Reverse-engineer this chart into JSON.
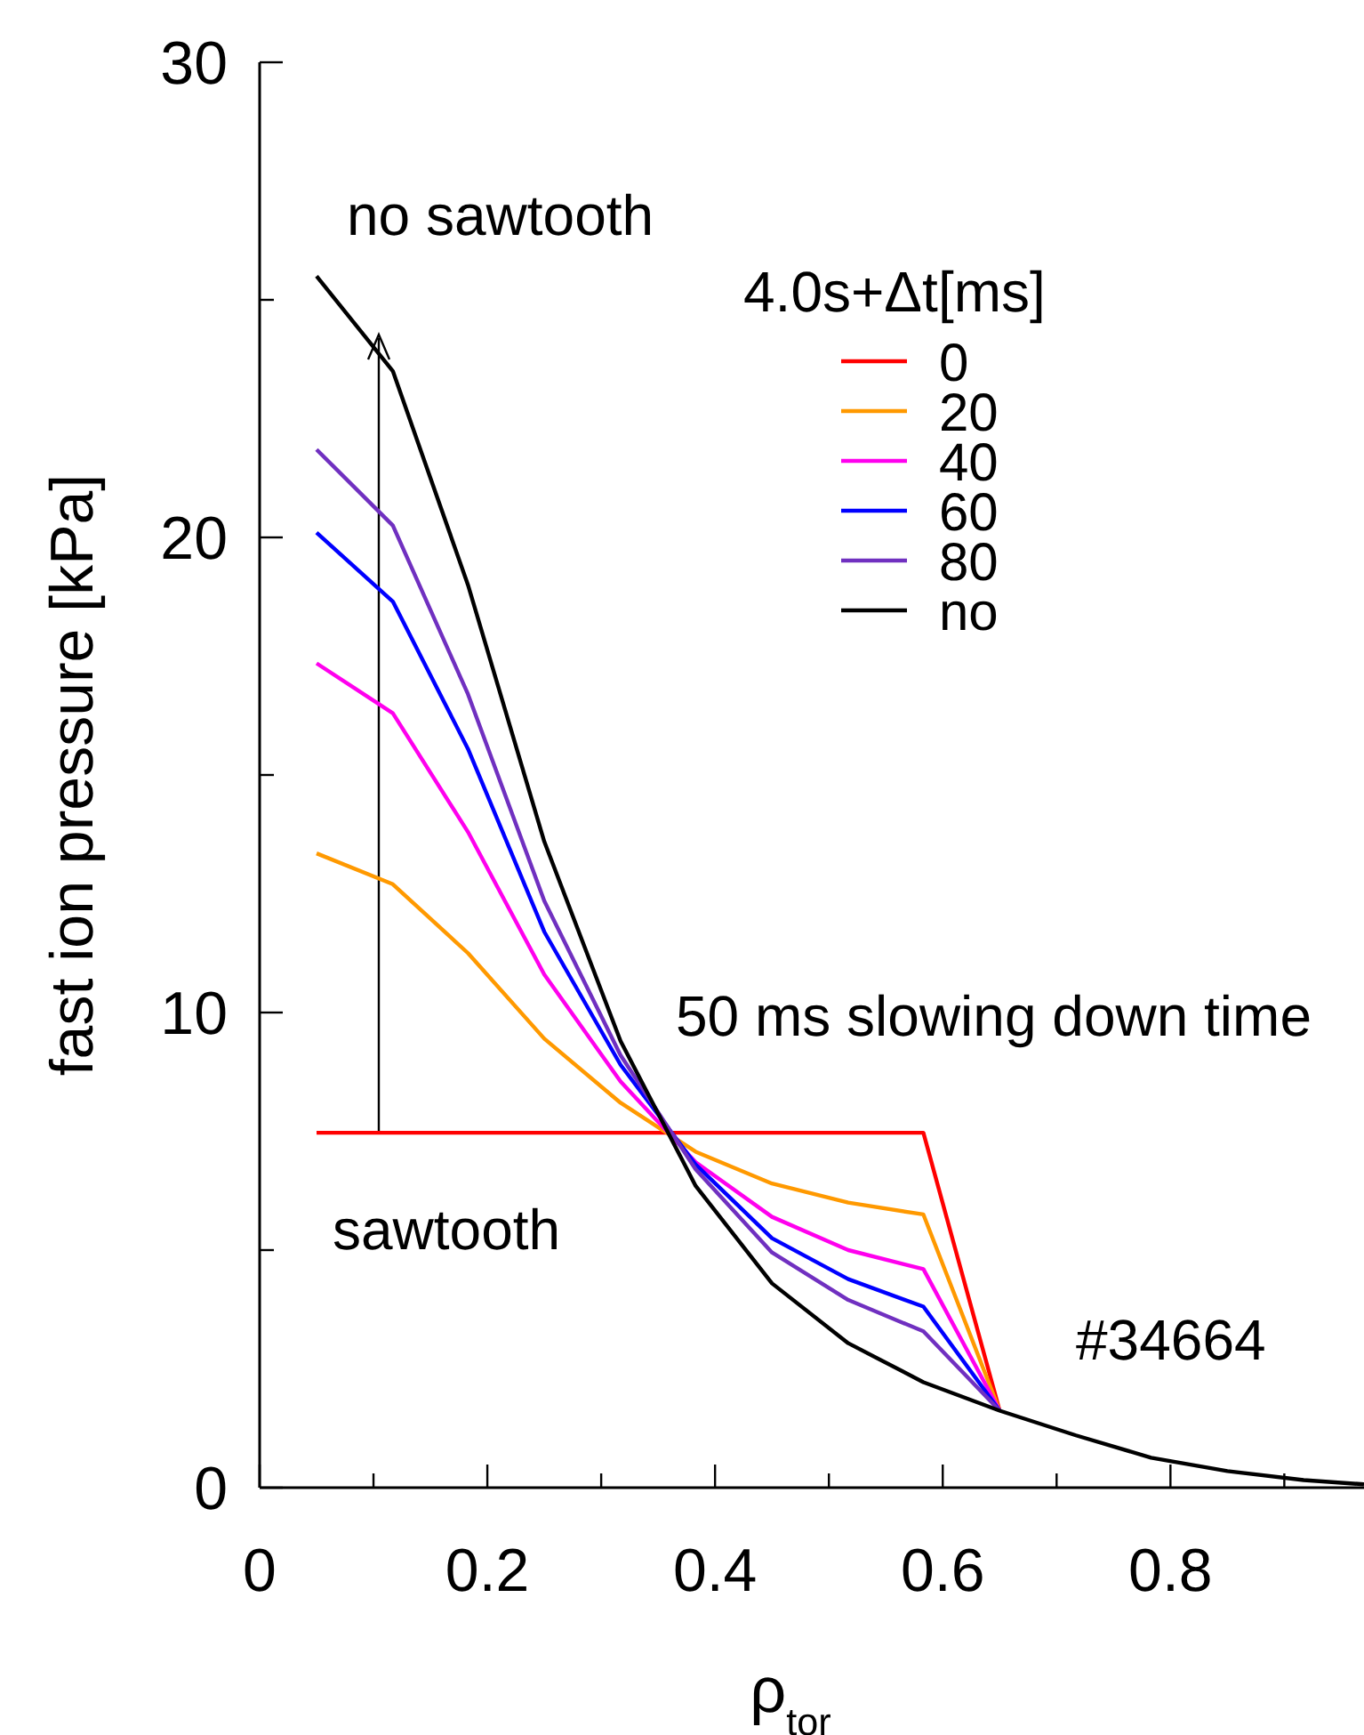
{
  "chart_data": {
    "type": "line",
    "xlabel": "ρ$_{tor}$",
    "ylabel": "fast ion pressure [kPa]",
    "legend_title": "4.0s+Δt[ms]",
    "x": [
      0.05,
      0.117,
      0.183,
      0.25,
      0.317,
      0.383,
      0.45,
      0.517,
      0.583,
      0.65,
      0.717,
      0.783,
      0.85,
      0.917,
      0.97
    ],
    "series": [
      {
        "name": "0",
        "color": "#ff0000",
        "values": [
          7.47,
          7.47,
          7.47,
          7.47,
          7.47,
          7.47,
          7.47,
          7.47,
          7.47,
          1.62,
          null,
          null,
          null,
          null,
          null
        ]
      },
      {
        "name": "20",
        "color": "#ff9900",
        "values": [
          13.35,
          12.7,
          11.25,
          9.45,
          8.1,
          7.07,
          6.4,
          6.0,
          5.75,
          1.62,
          null,
          null,
          null,
          null,
          null
        ]
      },
      {
        "name": "40",
        "color": "#ff00ee",
        "values": [
          17.35,
          16.3,
          13.8,
          10.8,
          8.55,
          6.85,
          5.7,
          5.0,
          4.6,
          1.62,
          null,
          null,
          null,
          null,
          null
        ]
      },
      {
        "name": "60",
        "color": "#0000ff",
        "values": [
          20.1,
          18.65,
          15.55,
          11.7,
          8.9,
          6.8,
          5.25,
          4.39,
          3.81,
          1.62,
          null,
          null,
          null,
          null,
          null
        ]
      },
      {
        "name": "80",
        "color": "#7030c0",
        "values": [
          21.85,
          20.25,
          16.7,
          12.35,
          9.1,
          6.7,
          4.95,
          3.95,
          3.29,
          1.62,
          null,
          null,
          null,
          null,
          null
        ]
      },
      {
        "name": "no",
        "color": "#000000",
        "values": [
          25.5,
          23.5,
          19.0,
          13.6,
          9.4,
          6.35,
          4.3,
          3.04,
          2.22,
          1.62,
          1.1,
          0.63,
          0.35,
          0.16,
          0.07
        ]
      }
    ],
    "xlim": [
      0,
      0.97
    ],
    "xticks": [
      0,
      {
        "value": 0.1,
        "label": null
      },
      0.2,
      {
        "value": 0.3,
        "label": null
      },
      0.4,
      {
        "value": 0.5,
        "label": null
      },
      0.6,
      {
        "value": 0.7,
        "label": null
      },
      0.8,
      {
        "value": 0.9,
        "label": null
      }
    ],
    "ylim": [
      0,
      30
    ],
    "yticks": [
      0,
      {
        "value": 5,
        "label": null
      },
      10,
      {
        "value": 15,
        "label": null
      },
      20,
      {
        "value": 25,
        "label": null
      },
      30
    ],
    "annotations": [
      "no sawtooth",
      "sawtooth",
      "50 ms slowing down time",
      "#34664"
    ],
    "legend": "top right",
    "grid": false,
    "marker": "none",
    "line_style": "solid"
  }
}
